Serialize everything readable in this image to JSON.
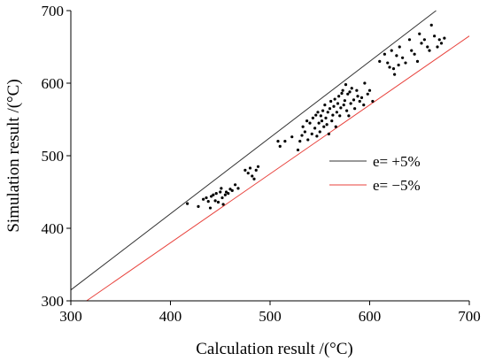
{
  "chart_data": {
    "type": "scatter",
    "xlabel": "Calculation result /(°C)",
    "ylabel": "Simulation result /(°C)",
    "xlim": [
      300,
      700
    ],
    "ylim": [
      300,
      700
    ],
    "xticks": [
      300,
      400,
      500,
      600,
      700
    ],
    "yticks": [
      300,
      400,
      500,
      600,
      700
    ],
    "grid": false,
    "legend_position": "center-right",
    "colors": {
      "points": "#000000",
      "upper_line": "#333333",
      "lower_line": "#e8413b",
      "axis": "#000000"
    },
    "lines": [
      {
        "name": "e= +5%",
        "factor": 1.05
      },
      {
        "name": "e= −5%",
        "factor": 0.95
      }
    ],
    "points": [
      [
        417,
        434
      ],
      [
        428,
        430
      ],
      [
        433,
        440
      ],
      [
        436,
        442
      ],
      [
        438,
        437
      ],
      [
        440,
        428
      ],
      [
        441,
        444
      ],
      [
        443,
        446
      ],
      [
        445,
        438
      ],
      [
        446,
        448
      ],
      [
        448,
        436
      ],
      [
        450,
        450
      ],
      [
        451,
        455
      ],
      [
        452,
        442
      ],
      [
        453,
        433
      ],
      [
        455,
        446
      ],
      [
        456,
        450
      ],
      [
        458,
        448
      ],
      [
        460,
        454
      ],
      [
        462,
        452
      ],
      [
        465,
        460
      ],
      [
        468,
        455
      ],
      [
        475,
        480
      ],
      [
        478,
        476
      ],
      [
        480,
        483
      ],
      [
        482,
        472
      ],
      [
        484,
        468
      ],
      [
        486,
        480
      ],
      [
        488,
        485
      ],
      [
        508,
        520
      ],
      [
        510,
        513
      ],
      [
        515,
        520
      ],
      [
        522,
        526
      ],
      [
        528,
        508
      ],
      [
        530,
        520
      ],
      [
        532,
        528
      ],
      [
        533,
        540
      ],
      [
        535,
        533
      ],
      [
        537,
        548
      ],
      [
        538,
        522
      ],
      [
        540,
        545
      ],
      [
        542,
        530
      ],
      [
        543,
        552
      ],
      [
        545,
        538
      ],
      [
        546,
        556
      ],
      [
        547,
        527
      ],
      [
        548,
        560
      ],
      [
        549,
        545
      ],
      [
        550,
        533
      ],
      [
        551,
        555
      ],
      [
        552,
        548
      ],
      [
        553,
        562
      ],
      [
        554,
        540
      ],
      [
        555,
        570
      ],
      [
        556,
        552
      ],
      [
        557,
        543
      ],
      [
        558,
        560
      ],
      [
        559,
        530
      ],
      [
        560,
        565
      ],
      [
        561,
        575
      ],
      [
        562,
        548
      ],
      [
        563,
        556
      ],
      [
        564,
        568
      ],
      [
        565,
        578
      ],
      [
        566,
        540
      ],
      [
        567,
        560
      ],
      [
        568,
        572
      ],
      [
        569,
        582
      ],
      [
        570,
        555
      ],
      [
        571,
        566
      ],
      [
        572,
        586
      ],
      [
        573,
        590
      ],
      [
        574,
        570
      ],
      [
        575,
        576
      ],
      [
        576,
        598
      ],
      [
        577,
        562
      ],
      [
        578,
        585
      ],
      [
        579,
        555
      ],
      [
        580,
        588
      ],
      [
        581,
        572
      ],
      [
        582,
        593
      ],
      [
        584,
        577
      ],
      [
        585,
        565
      ],
      [
        587,
        590
      ],
      [
        588,
        582
      ],
      [
        590,
        575
      ],
      [
        592,
        580
      ],
      [
        594,
        570
      ],
      [
        595,
        600
      ],
      [
        598,
        585
      ],
      [
        600,
        590
      ],
      [
        603,
        575
      ],
      [
        610,
        630
      ],
      [
        615,
        640
      ],
      [
        618,
        628
      ],
      [
        620,
        622
      ],
      [
        622,
        645
      ],
      [
        624,
        620
      ],
      [
        625,
        612
      ],
      [
        627,
        638
      ],
      [
        629,
        625
      ],
      [
        630,
        650
      ],
      [
        633,
        635
      ],
      [
        636,
        628
      ],
      [
        640,
        660
      ],
      [
        642,
        645
      ],
      [
        645,
        640
      ],
      [
        648,
        630
      ],
      [
        650,
        668
      ],
      [
        652,
        655
      ],
      [
        655,
        660
      ],
      [
        658,
        650
      ],
      [
        660,
        645
      ],
      [
        662,
        680
      ],
      [
        665,
        665
      ],
      [
        668,
        650
      ],
      [
        670,
        660
      ],
      [
        672,
        655
      ],
      [
        675,
        662
      ]
    ]
  }
}
